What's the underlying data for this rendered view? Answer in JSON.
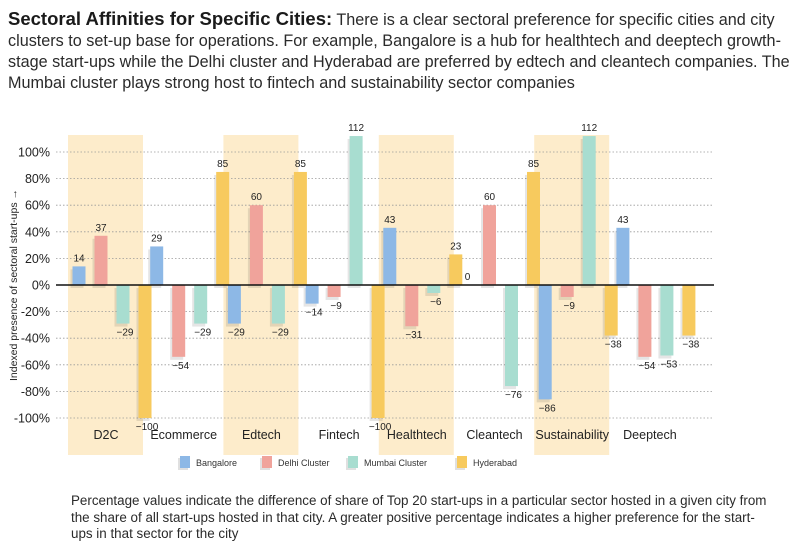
{
  "header": {
    "title": "Sectoral Affinities for Specific Cities:",
    "body": "There is a clear sectoral preference for specific cities and city clusters to set-up base for operations. For example, Bangalore is a hub for healthtech and deeptech growth-stage start-ups while the Delhi cluster and Hyderabad are preferred by edtech and cleantech companies. The Mumbai cluster plays strong host to fintech and sustainability sector companies"
  },
  "footer": {
    "note": "Percentage values indicate the difference of share of Top 20 start-ups in a particular sector hosted in a given city from the share of all start-ups hosted in that city. A greater positive percentage indicates a higher preference for the start-ups in that sector for the city"
  },
  "chart_data": {
    "type": "bar",
    "title": "",
    "xlabel": "",
    "ylabel": "Indexed presence of sectoral start-ups →",
    "ylim": [
      -100,
      100
    ],
    "yticks": [
      100,
      80,
      60,
      40,
      20,
      0,
      -20,
      -40,
      -60,
      -80,
      -100
    ],
    "ytick_labels": [
      "100%",
      "80%",
      "60%",
      "40%",
      "20%",
      "0%",
      "-20%",
      "-40%",
      "-60%",
      "-80%",
      "-100%"
    ],
    "grid": true,
    "legend_position": "bottom",
    "categories": [
      "D2C",
      "Ecommerce",
      "Edtech",
      "Fintech",
      "Healthtech",
      "Cleantech",
      "Sustainability",
      "Deeptech"
    ],
    "highlighted_categories": [
      "D2C",
      "Edtech",
      "Healthtech",
      "Sustainability"
    ],
    "series": [
      {
        "name": "Bangalore",
        "color": "#8db8e6",
        "values": [
          14,
          29,
          -29,
          -14,
          43,
          0,
          -86,
          43
        ]
      },
      {
        "name": "Delhi Cluster",
        "color": "#f0a39b",
        "values": [
          37,
          -54,
          60,
          -9,
          -31,
          60,
          -9,
          -54
        ]
      },
      {
        "name": "Mumbai Cluster",
        "color": "#a8ddd0",
        "values": [
          -29,
          -29,
          -29,
          112,
          -6,
          -76,
          112,
          -53
        ]
      },
      {
        "name": "Hyderabad",
        "color": "#f7ca5e",
        "values": [
          -100,
          85,
          85,
          -100,
          23,
          85,
          -38,
          -38
        ]
      }
    ],
    "colors": {
      "band": "#fdeccb",
      "grid": "#9a9a9a",
      "axis": "#111111"
    }
  }
}
